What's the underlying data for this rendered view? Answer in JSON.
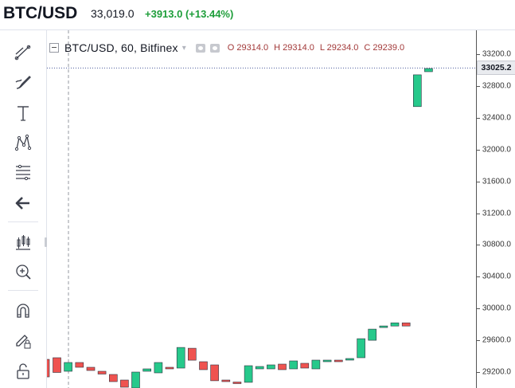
{
  "header": {
    "symbol": "BTC/USD",
    "price": "33,019.0",
    "change": "+3913.0 (+13.44%)",
    "change_color": "#1e9e3a"
  },
  "toolbar": {
    "tools": [
      {
        "name": "trend-line-icon"
      },
      {
        "name": "brush-icon"
      },
      {
        "name": "text-icon"
      },
      {
        "name": "pattern-icon"
      },
      {
        "name": "fib-retracement-icon"
      },
      {
        "name": "back-arrow-icon"
      },
      {
        "name": "long-position-icon"
      },
      {
        "name": "zoom-in-icon"
      },
      {
        "name": "magnet-icon"
      },
      {
        "name": "lock-drawing-icon"
      },
      {
        "name": "unlock-icon"
      }
    ]
  },
  "legend": {
    "title": "BTC/USD, 60, Bitfinex",
    "open": "O 29314.0",
    "high": "H 29314.0",
    "low": "L 29234.0",
    "close": "C 29239.0"
  },
  "axis": {
    "ticks": [
      "33200.0",
      "32800.0",
      "32400.0",
      "32000.0",
      "31600.0",
      "31200.0",
      "30800.0",
      "30400.0",
      "30000.0",
      "29600.0",
      "29200.0"
    ],
    "current_price": "33025.2"
  },
  "chart_data": {
    "type": "candlestick",
    "up_color": "#26c98b",
    "down_color": "#ef5350",
    "ylim": [
      29000,
      33380
    ],
    "last_price": 33025.2,
    "candles": [
      {
        "o": 29380,
        "c": 29195
      },
      {
        "o": 29210,
        "c": 29320
      },
      {
        "o": 29320,
        "c": 29260
      },
      {
        "o": 29260,
        "c": 29220
      },
      {
        "o": 29210,
        "c": 29175
      },
      {
        "o": 29170,
        "c": 29080
      },
      {
        "o": 29100,
        "c": 29010
      },
      {
        "o": 29000,
        "c": 29200
      },
      {
        "o": 29210,
        "c": 29240
      },
      {
        "o": 29190,
        "c": 29320
      },
      {
        "o": 29260,
        "c": 29250
      },
      {
        "o": 29250,
        "c": 29510
      },
      {
        "o": 29500,
        "c": 29350
      },
      {
        "o": 29330,
        "c": 29230
      },
      {
        "o": 29290,
        "c": 29090
      },
      {
        "o": 29100,
        "c": 29090
      },
      {
        "o": 29075,
        "c": 29070
      },
      {
        "o": 29070,
        "c": 29280
      },
      {
        "o": 29240,
        "c": 29270
      },
      {
        "o": 29240,
        "c": 29290
      },
      {
        "o": 29300,
        "c": 29230
      },
      {
        "o": 29240,
        "c": 29340
      },
      {
        "o": 29310,
        "c": 29250
      },
      {
        "o": 29240,
        "c": 29350
      },
      {
        "o": 29330,
        "c": 29350
      },
      {
        "o": 29350,
        "c": 29340
      },
      {
        "o": 29350,
        "c": 29370
      },
      {
        "o": 29380,
        "c": 29620
      },
      {
        "o": 29600,
        "c": 29740
      },
      {
        "o": 29770,
        "c": 29780
      },
      {
        "o": 29780,
        "c": 29820
      },
      {
        "o": 29820,
        "c": 29780
      },
      {
        "o": 32540,
        "c": 32940
      },
      {
        "o": 32980,
        "c": 33020
      }
    ]
  }
}
